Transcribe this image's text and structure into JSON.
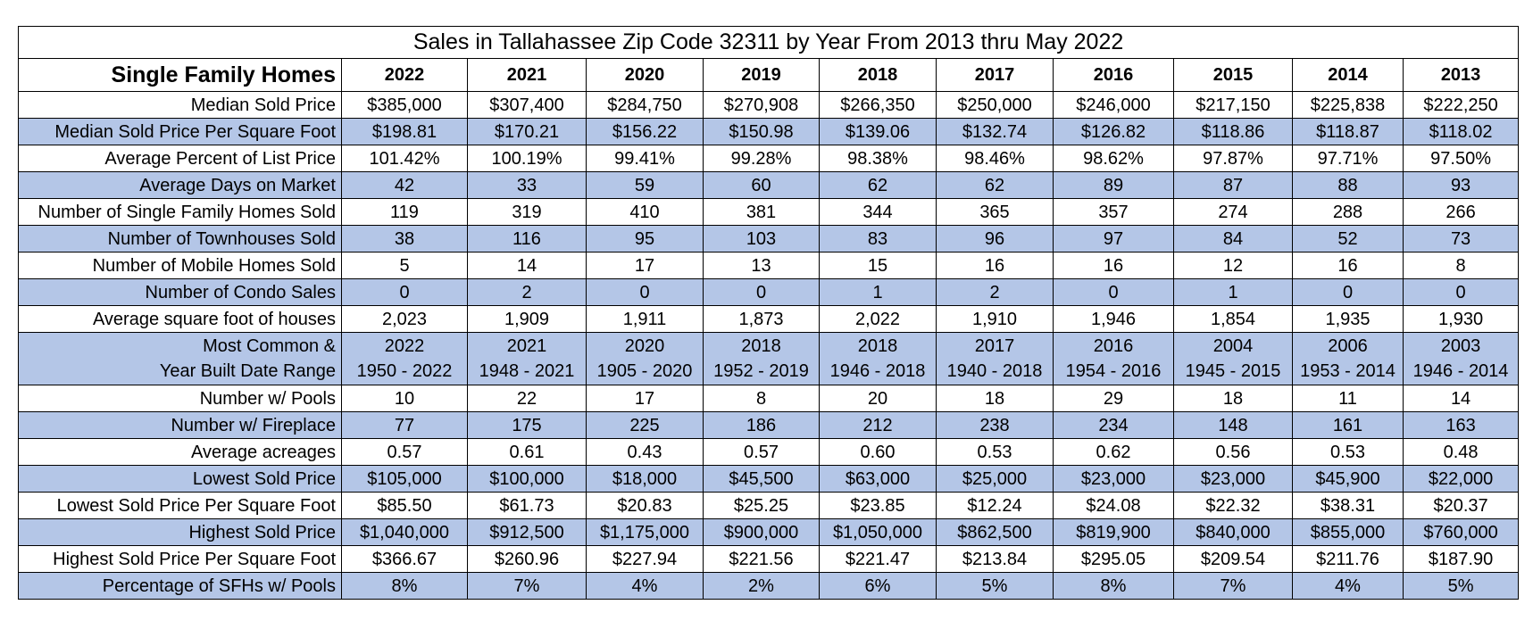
{
  "title": "Sales in Tallahassee Zip Code 32311 by Year From 2013 thru May 2022",
  "table": {
    "row_header_label": "Single Family Homes",
    "years": [
      "2022",
      "2021",
      "2020",
      "2019",
      "2018",
      "2017",
      "2016",
      "2015",
      "2014",
      "2013"
    ],
    "rows": [
      {
        "label": "Median Sold Price",
        "shaded": false,
        "values": [
          "$385,000",
          "$307,400",
          "$284,750",
          "$270,908",
          "$266,350",
          "$250,000",
          "$246,000",
          "$217,150",
          "$225,838",
          "$222,250"
        ]
      },
      {
        "label": "Median Sold Price Per Square Foot",
        "shaded": true,
        "values": [
          "$198.81",
          "$170.21",
          "$156.22",
          "$150.98",
          "$139.06",
          "$132.74",
          "$126.82",
          "$118.86",
          "$118.87",
          "$118.02"
        ]
      },
      {
        "label": "Average Percent of List Price",
        "shaded": false,
        "values": [
          "101.42%",
          "100.19%",
          "99.41%",
          "99.28%",
          "98.38%",
          "98.46%",
          "98.62%",
          "97.87%",
          "97.71%",
          "97.50%"
        ]
      },
      {
        "label": "Average Days on Market",
        "shaded": true,
        "values": [
          "42",
          "33",
          "59",
          "60",
          "62",
          "62",
          "89",
          "87",
          "88",
          "93"
        ]
      },
      {
        "label": "Number of Single Family Homes Sold",
        "shaded": false,
        "values": [
          "119",
          "319",
          "410",
          "381",
          "344",
          "365",
          "357",
          "274",
          "288",
          "266"
        ]
      },
      {
        "label": "Number of Townhouses Sold",
        "shaded": true,
        "values": [
          "38",
          "116",
          "95",
          "103",
          "83",
          "96",
          "97",
          "84",
          "52",
          "73"
        ]
      },
      {
        "label": "Number of Mobile Homes Sold",
        "shaded": false,
        "values": [
          "5",
          "14",
          "17",
          "13",
          "15",
          "16",
          "16",
          "12",
          "16",
          "8"
        ]
      },
      {
        "label": "Number of Condo Sales",
        "shaded": true,
        "values": [
          "0",
          "2",
          "0",
          "0",
          "1",
          "2",
          "0",
          "1",
          "0",
          "0"
        ]
      },
      {
        "label": "Average square foot of houses",
        "shaded": false,
        "values": [
          "2,023",
          "1,909",
          "1,911",
          "1,873",
          "2,022",
          "1,910",
          "1,946",
          "1,854",
          "1,935",
          "1,930"
        ]
      }
    ],
    "year_built_row": {
      "label_line1": "Most Common &",
      "label_line2": "Year Built Date Range",
      "shaded": true,
      "common": [
        "2022",
        "2021",
        "2020",
        "2018",
        "2018",
        "2017",
        "2016",
        "2004",
        "2006",
        "2003"
      ],
      "ranges": [
        "1950 - 2022",
        "1948 - 2021",
        "1905 - 2020",
        "1952 - 2019",
        "1946 - 2018",
        "1940 - 2018",
        "1954 - 2016",
        "1945 - 2015",
        "1953 - 2014",
        "1946 - 2014"
      ]
    },
    "rows_after": [
      {
        "label": "Number w/ Pools",
        "shaded": false,
        "values": [
          "10",
          "22",
          "17",
          "8",
          "20",
          "18",
          "29",
          "18",
          "11",
          "14"
        ]
      },
      {
        "label": "Number w/ Fireplace",
        "shaded": true,
        "values": [
          "77",
          "175",
          "225",
          "186",
          "212",
          "238",
          "234",
          "148",
          "161",
          "163"
        ]
      },
      {
        "label": "Average acreages",
        "shaded": false,
        "values": [
          "0.57",
          "0.61",
          "0.43",
          "0.57",
          "0.60",
          "0.53",
          "0.62",
          "0.56",
          "0.53",
          "0.48"
        ]
      },
      {
        "label": "Lowest Sold Price",
        "shaded": true,
        "values": [
          "$105,000",
          "$100,000",
          "$18,000",
          "$45,500",
          "$63,000",
          "$25,000",
          "$23,000",
          "$23,000",
          "$45,900",
          "$22,000"
        ]
      },
      {
        "label": "Lowest Sold Price Per Square Foot",
        "shaded": false,
        "values": [
          "$85.50",
          "$61.73",
          "$20.83",
          "$25.25",
          "$23.85",
          "$12.24",
          "$24.08",
          "$22.32",
          "$38.31",
          "$20.37"
        ]
      },
      {
        "label": "Highest Sold Price",
        "shaded": true,
        "values": [
          "$1,040,000",
          "$912,500",
          "$1,175,000",
          "$900,000",
          "$1,050,000",
          "$862,500",
          "$819,900",
          "$840,000",
          "$855,000",
          "$760,000"
        ]
      },
      {
        "label": "Highest Sold Price Per Square Foot",
        "shaded": false,
        "values": [
          "$366.67",
          "$260.96",
          "$227.94",
          "$221.56",
          "$221.47",
          "$213.84",
          "$295.05",
          "$209.54",
          "$211.76",
          "$187.90"
        ]
      },
      {
        "label": "Percentage of SFHs w/ Pools",
        "shaded": true,
        "values": [
          "8%",
          "7%",
          "4%",
          "2%",
          "6%",
          "5%",
          "8%",
          "7%",
          "4%",
          "5%"
        ]
      }
    ]
  },
  "colors": {
    "shaded_row": "#b4c6e7",
    "border": "#000000",
    "background": "#ffffff"
  }
}
